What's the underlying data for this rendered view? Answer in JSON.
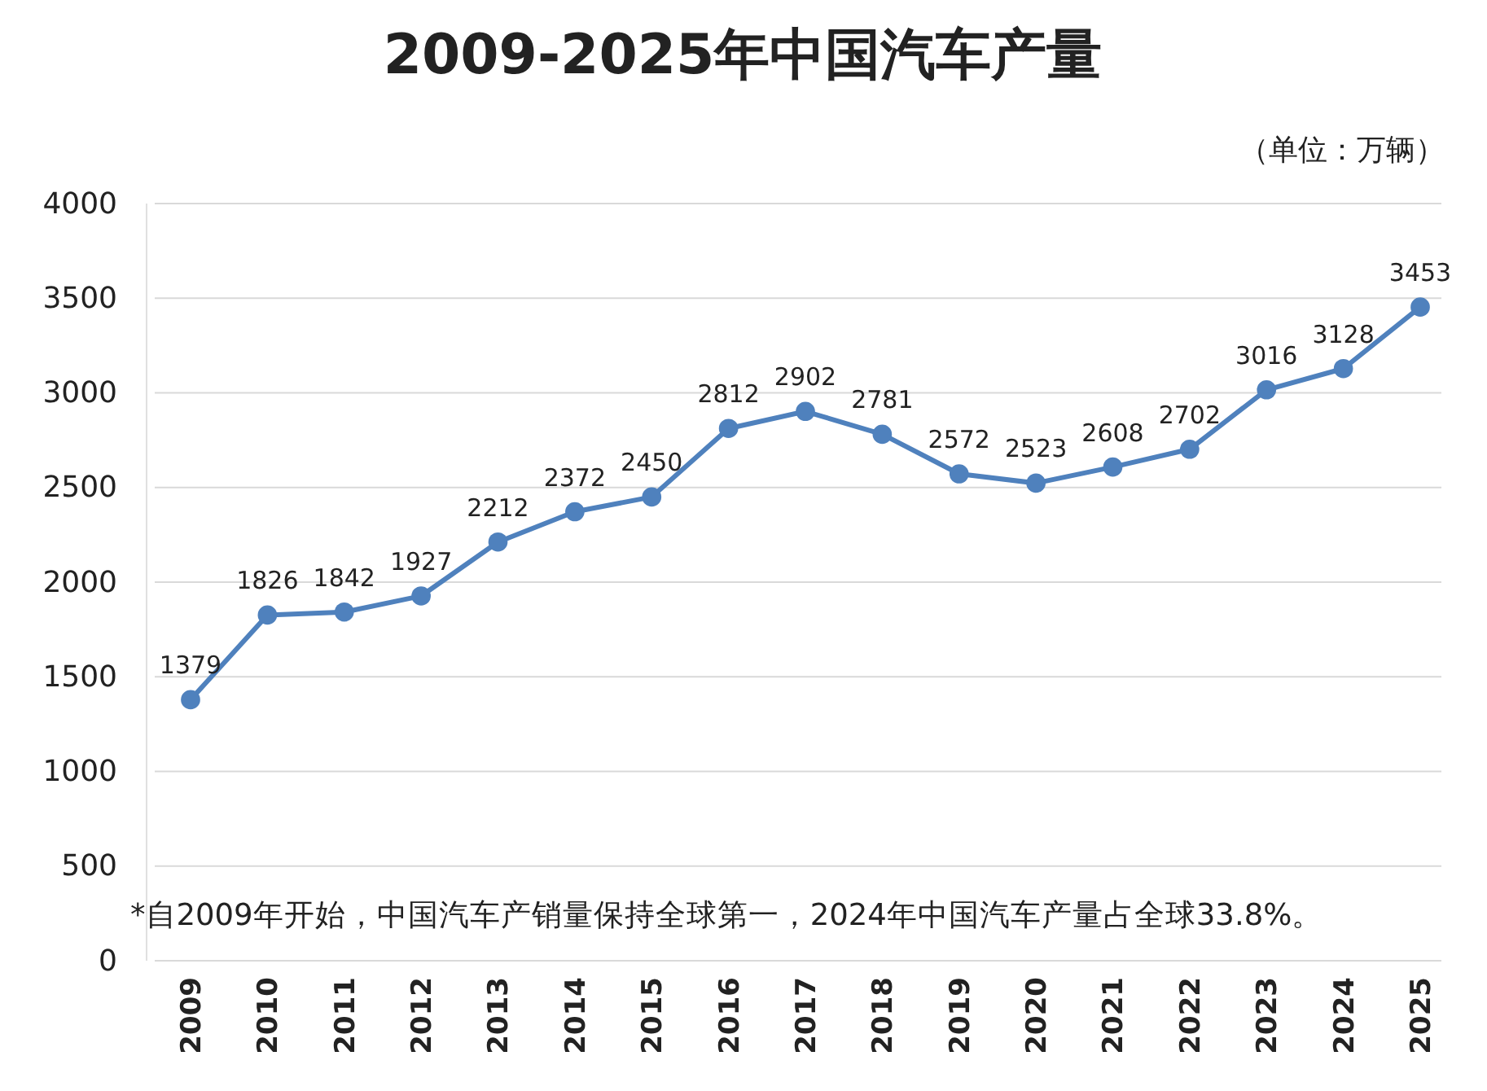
{
  "chart_data": {
    "type": "line",
    "title": "2009-2025年中国汽车产量",
    "ylabel": "（单位：万辆）",
    "categories": [
      "2009",
      "2010",
      "2011",
      "2012",
      "2013",
      "2014",
      "2015",
      "2016",
      "2017",
      "2018",
      "2019",
      "2020",
      "2021",
      "2022",
      "2023",
      "2024",
      "2025"
    ],
    "series": [
      {
        "color": "#4f81bd",
        "values": [
          1379,
          1826,
          1842,
          1927,
          2212,
          2372,
          2450,
          2812,
          2902,
          2781,
          2572,
          2523,
          2608,
          2702,
          3016,
          3128,
          3453
        ]
      }
    ],
    "ylim": [
      0,
      4000
    ],
    "yticks": [
      0,
      500,
      1000,
      1500,
      2000,
      2500,
      3000,
      3500,
      4000
    ],
    "grid": "y",
    "marker": "circle",
    "line_style": "solid",
    "data_labels": true,
    "annotations": [
      "*自2009年开始，中国汽车产销量保持全球第一，2024年中国汽车产量占全球33.8%。"
    ]
  }
}
